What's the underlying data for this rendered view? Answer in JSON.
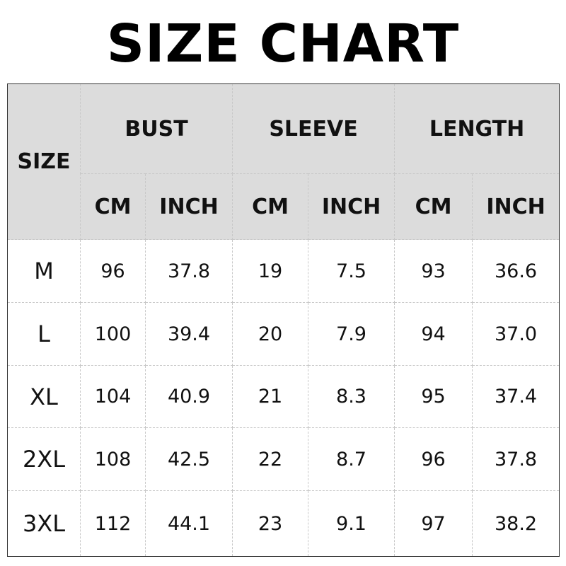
{
  "title": "SIZE CHART",
  "table": {
    "size_header": "SIZE",
    "groups": [
      "BUST",
      "SLEEVE",
      "LENGTH"
    ],
    "units": [
      "CM",
      "INCH",
      "CM",
      "INCH",
      "CM",
      "INCH"
    ],
    "rows": [
      {
        "size": "M",
        "values": [
          "96",
          "37.8",
          "19",
          "7.5",
          "93",
          "36.6"
        ]
      },
      {
        "size": "L",
        "values": [
          "100",
          "39.4",
          "20",
          "7.9",
          "94",
          "37.0"
        ]
      },
      {
        "size": "XL",
        "values": [
          "104",
          "40.9",
          "21",
          "8.3",
          "95",
          "37.4"
        ]
      },
      {
        "size": "2XL",
        "values": [
          "108",
          "42.5",
          "22",
          "8.7",
          "96",
          "37.8"
        ]
      },
      {
        "size": "3XL",
        "values": [
          "112",
          "44.1",
          "23",
          "9.1",
          "97",
          "38.2"
        ]
      }
    ],
    "header_bg": "#dcdcdc"
  }
}
